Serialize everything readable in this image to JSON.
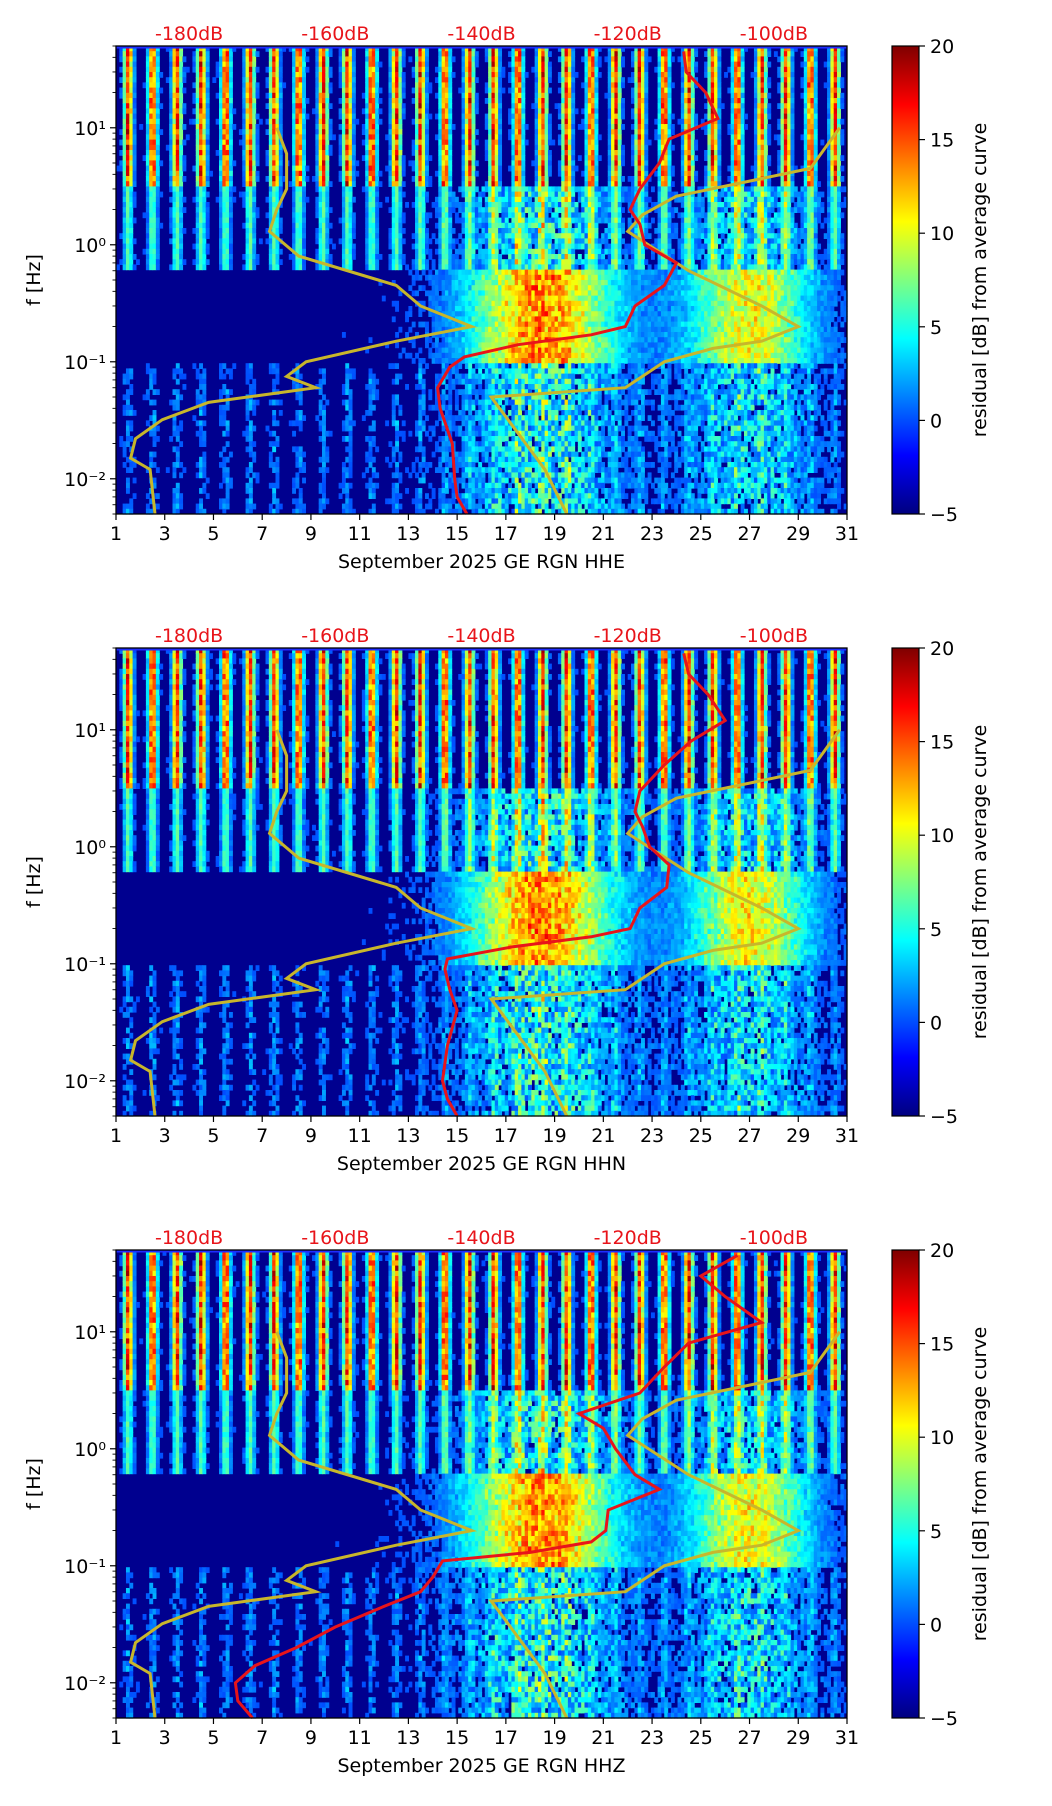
{
  "colors": {
    "noise_model_curve": "#c8b62b",
    "station_curve": "#e8141a",
    "db_scale_text": "#e8141a",
    "colormap": "jet"
  },
  "chart_data": [
    {
      "type": "heatmap",
      "channel": "HHE",
      "title": "",
      "xlabel": "September 2025 GE RGN  HHE",
      "ylabel": "f [Hz]",
      "colorbar_label": "residual [dB] from average curve",
      "colorbar_range": [
        -5,
        20
      ],
      "colorbar_ticks": [
        "20",
        "15",
        "10",
        "5",
        "0",
        "−5"
      ],
      "xlim": [
        1,
        31
      ],
      "x_ticks": [
        "1",
        "3",
        "5",
        "7",
        "9",
        "11",
        "13",
        "15",
        "17",
        "19",
        "21",
        "23",
        "25",
        "27",
        "29",
        "31"
      ],
      "ylim_hz": [
        0.005,
        50
      ],
      "y_scale": "log",
      "y_ticks": [
        "10¹",
        "10⁰",
        "10⁻¹",
        "10⁻²"
      ],
      "db_scale_labels": [
        "-180dB",
        "-160dB",
        "-140dB",
        "-120dB",
        "-100dB"
      ],
      "db_scale_values": [
        -180,
        -160,
        -140,
        -120,
        -100
      ],
      "noise_model_curve": [
        {
          "f": 0.005,
          "day": 2.6
        },
        {
          "f": 0.012,
          "day": 2.4
        },
        {
          "f": 0.015,
          "day": 1.6
        },
        {
          "f": 0.022,
          "day": 1.8
        },
        {
          "f": 0.032,
          "day": 2.9
        },
        {
          "f": 0.045,
          "day": 4.8
        },
        {
          "f": 0.06,
          "day": 9.2
        },
        {
          "f": 0.075,
          "day": 8.0
        },
        {
          "f": 0.1,
          "day": 8.8
        },
        {
          "f": 0.15,
          "day": 12.5
        },
        {
          "f": 0.2,
          "day": 15.6
        },
        {
          "f": 0.3,
          "day": 13.5
        },
        {
          "f": 0.45,
          "day": 12.5
        },
        {
          "f": 0.8,
          "day": 8.5
        },
        {
          "f": 1.3,
          "day": 7.3
        },
        {
          "f": 2.0,
          "day": 7.6
        },
        {
          "f": 3.0,
          "day": 8.0
        },
        {
          "f": 6.0,
          "day": 8.0
        },
        {
          "f": 10.0,
          "day": 7.6
        },
        {
          "gap": true
        },
        {
          "f": 0.005,
          "day": 19.5
        },
        {
          "f": 0.012,
          "day": 18.6
        },
        {
          "f": 0.05,
          "day": 16.4
        },
        {
          "f": 0.06,
          "day": 21.9
        },
        {
          "f": 0.1,
          "day": 23.5
        },
        {
          "f": 0.13,
          "day": 25.5
        },
        {
          "f": 0.15,
          "day": 27.5
        },
        {
          "f": 0.2,
          "day": 29.0
        },
        {
          "f": 0.3,
          "day": 27.5
        },
        {
          "f": 0.6,
          "day": 24.5
        },
        {
          "f": 1.3,
          "day": 22.0
        },
        {
          "f": 1.8,
          "day": 22.6
        },
        {
          "f": 2.6,
          "day": 24.0
        },
        {
          "f": 3.5,
          "day": 27.0
        },
        {
          "f": 4.5,
          "day": 29.5
        },
        {
          "f": 10.0,
          "day": 30.7
        }
      ],
      "station_curve": [
        {
          "f": 0.005,
          "day": 15.4
        },
        {
          "f": 0.007,
          "day": 15.0
        },
        {
          "f": 0.01,
          "day": 14.9
        },
        {
          "f": 0.02,
          "day": 14.8
        },
        {
          "f": 0.04,
          "day": 14.3
        },
        {
          "f": 0.06,
          "day": 14.2
        },
        {
          "f": 0.09,
          "day": 14.7
        },
        {
          "f": 0.11,
          "day": 15.3
        },
        {
          "f": 0.14,
          "day": 17.5
        },
        {
          "f": 0.17,
          "day": 20.5
        },
        {
          "f": 0.2,
          "day": 21.9
        },
        {
          "f": 0.3,
          "day": 22.3
        },
        {
          "f": 0.45,
          "day": 23.5
        },
        {
          "f": 0.7,
          "day": 24.0
        },
        {
          "f": 1.0,
          "day": 22.7
        },
        {
          "f": 1.5,
          "day": 22.5
        },
        {
          "f": 2.0,
          "day": 22.1
        },
        {
          "f": 3.0,
          "day": 22.5
        },
        {
          "f": 5.0,
          "day": 23.3
        },
        {
          "f": 8.0,
          "day": 23.7
        },
        {
          "f": 12.0,
          "day": 25.7
        },
        {
          "f": 20.0,
          "day": 25.2
        },
        {
          "f": 30.0,
          "day": 24.4
        },
        {
          "f": 45.0,
          "day": 24.3
        }
      ]
    },
    {
      "type": "heatmap",
      "channel": "HHN",
      "title": "",
      "xlabel": "September 2025 GE RGN  HHN",
      "ylabel": "f [Hz]",
      "colorbar_label": "residual [dB] from average curve",
      "colorbar_range": [
        -5,
        20
      ],
      "colorbar_ticks": [
        "20",
        "15",
        "10",
        "5",
        "0",
        "−5"
      ],
      "xlim": [
        1,
        31
      ],
      "x_ticks": [
        "1",
        "3",
        "5",
        "7",
        "9",
        "11",
        "13",
        "15",
        "17",
        "19",
        "21",
        "23",
        "25",
        "27",
        "29",
        "31"
      ],
      "ylim_hz": [
        0.005,
        50
      ],
      "y_scale": "log",
      "y_ticks": [
        "10¹",
        "10⁰",
        "10⁻¹",
        "10⁻²"
      ],
      "db_scale_labels": [
        "-180dB",
        "-160dB",
        "-140dB",
        "-120dB",
        "-100dB"
      ],
      "db_scale_values": [
        -180,
        -160,
        -140,
        -120,
        -100
      ],
      "noise_model_curve": [
        {
          "f": 0.005,
          "day": 2.6
        },
        {
          "f": 0.012,
          "day": 2.4
        },
        {
          "f": 0.015,
          "day": 1.6
        },
        {
          "f": 0.022,
          "day": 1.8
        },
        {
          "f": 0.032,
          "day": 2.9
        },
        {
          "f": 0.045,
          "day": 4.8
        },
        {
          "f": 0.06,
          "day": 9.2
        },
        {
          "f": 0.075,
          "day": 8.0
        },
        {
          "f": 0.1,
          "day": 8.8
        },
        {
          "f": 0.15,
          "day": 12.5
        },
        {
          "f": 0.2,
          "day": 15.6
        },
        {
          "f": 0.3,
          "day": 13.5
        },
        {
          "f": 0.45,
          "day": 12.5
        },
        {
          "f": 0.8,
          "day": 8.5
        },
        {
          "f": 1.3,
          "day": 7.3
        },
        {
          "f": 2.0,
          "day": 7.6
        },
        {
          "f": 3.0,
          "day": 8.0
        },
        {
          "f": 6.0,
          "day": 8.0
        },
        {
          "f": 10.0,
          "day": 7.6
        },
        {
          "gap": true
        },
        {
          "f": 0.005,
          "day": 19.5
        },
        {
          "f": 0.012,
          "day": 18.6
        },
        {
          "f": 0.05,
          "day": 16.4
        },
        {
          "f": 0.06,
          "day": 21.9
        },
        {
          "f": 0.1,
          "day": 23.5
        },
        {
          "f": 0.13,
          "day": 25.5
        },
        {
          "f": 0.15,
          "day": 27.5
        },
        {
          "f": 0.2,
          "day": 29.0
        },
        {
          "f": 0.3,
          "day": 27.5
        },
        {
          "f": 0.6,
          "day": 24.5
        },
        {
          "f": 1.3,
          "day": 22.0
        },
        {
          "f": 1.8,
          "day": 22.6
        },
        {
          "f": 2.6,
          "day": 24.0
        },
        {
          "f": 3.5,
          "day": 27.0
        },
        {
          "f": 4.5,
          "day": 29.5
        },
        {
          "f": 10.0,
          "day": 30.7
        }
      ],
      "station_curve": [
        {
          "f": 0.005,
          "day": 15.0
        },
        {
          "f": 0.007,
          "day": 14.6
        },
        {
          "f": 0.01,
          "day": 14.4
        },
        {
          "f": 0.02,
          "day": 14.6
        },
        {
          "f": 0.04,
          "day": 15.0
        },
        {
          "f": 0.06,
          "day": 14.7
        },
        {
          "f": 0.09,
          "day": 14.5
        },
        {
          "f": 0.11,
          "day": 14.6
        },
        {
          "f": 0.14,
          "day": 17.3
        },
        {
          "f": 0.17,
          "day": 20.5
        },
        {
          "f": 0.2,
          "day": 22.1
        },
        {
          "f": 0.3,
          "day": 22.5
        },
        {
          "f": 0.45,
          "day": 23.6
        },
        {
          "f": 0.7,
          "day": 23.7
        },
        {
          "f": 1.0,
          "day": 22.9
        },
        {
          "f": 1.5,
          "day": 22.6
        },
        {
          "f": 2.0,
          "day": 22.3
        },
        {
          "f": 3.0,
          "day": 22.5
        },
        {
          "f": 5.0,
          "day": 23.5
        },
        {
          "f": 8.0,
          "day": 24.6
        },
        {
          "f": 12.0,
          "day": 26.0
        },
        {
          "f": 20.0,
          "day": 25.3
        },
        {
          "f": 30.0,
          "day": 24.5
        },
        {
          "f": 45.0,
          "day": 24.3
        }
      ]
    },
    {
      "type": "heatmap",
      "channel": "HHZ",
      "title": "",
      "xlabel": "September 2025 GE RGN  HHZ",
      "ylabel": "f [Hz]",
      "colorbar_label": "residual [dB] from average curve",
      "colorbar_range": [
        -5,
        20
      ],
      "colorbar_ticks": [
        "20",
        "15",
        "10",
        "5",
        "0",
        "−5"
      ],
      "xlim": [
        1,
        31
      ],
      "x_ticks": [
        "1",
        "3",
        "5",
        "7",
        "9",
        "11",
        "13",
        "15",
        "17",
        "19",
        "21",
        "23",
        "25",
        "27",
        "29",
        "31"
      ],
      "ylim_hz": [
        0.005,
        50
      ],
      "y_scale": "log",
      "y_ticks": [
        "10¹",
        "10⁰",
        "10⁻¹",
        "10⁻²"
      ],
      "db_scale_labels": [
        "-180dB",
        "-160dB",
        "-140dB",
        "-120dB",
        "-100dB"
      ],
      "db_scale_values": [
        -180,
        -160,
        -140,
        -120,
        -100
      ],
      "noise_model_curve": [
        {
          "f": 0.005,
          "day": 2.6
        },
        {
          "f": 0.012,
          "day": 2.4
        },
        {
          "f": 0.015,
          "day": 1.6
        },
        {
          "f": 0.022,
          "day": 1.8
        },
        {
          "f": 0.032,
          "day": 2.9
        },
        {
          "f": 0.045,
          "day": 4.8
        },
        {
          "f": 0.06,
          "day": 9.2
        },
        {
          "f": 0.075,
          "day": 8.0
        },
        {
          "f": 0.1,
          "day": 8.8
        },
        {
          "f": 0.15,
          "day": 12.5
        },
        {
          "f": 0.2,
          "day": 15.6
        },
        {
          "f": 0.3,
          "day": 13.5
        },
        {
          "f": 0.45,
          "day": 12.5
        },
        {
          "f": 0.8,
          "day": 8.5
        },
        {
          "f": 1.3,
          "day": 7.3
        },
        {
          "f": 2.0,
          "day": 7.6
        },
        {
          "f": 3.0,
          "day": 8.0
        },
        {
          "f": 6.0,
          "day": 8.0
        },
        {
          "f": 10.0,
          "day": 7.6
        },
        {
          "gap": true
        },
        {
          "f": 0.005,
          "day": 19.5
        },
        {
          "f": 0.012,
          "day": 18.6
        },
        {
          "f": 0.05,
          "day": 16.4
        },
        {
          "f": 0.06,
          "day": 21.9
        },
        {
          "f": 0.1,
          "day": 23.5
        },
        {
          "f": 0.13,
          "day": 25.5
        },
        {
          "f": 0.15,
          "day": 27.5
        },
        {
          "f": 0.2,
          "day": 29.0
        },
        {
          "f": 0.3,
          "day": 27.5
        },
        {
          "f": 0.6,
          "day": 24.5
        },
        {
          "f": 1.3,
          "day": 22.0
        },
        {
          "f": 1.8,
          "day": 22.6
        },
        {
          "f": 2.6,
          "day": 24.0
        },
        {
          "f": 3.5,
          "day": 27.0
        },
        {
          "f": 4.5,
          "day": 29.5
        },
        {
          "f": 10.0,
          "day": 30.7
        }
      ],
      "station_curve": [
        {
          "f": 0.005,
          "day": 6.6
        },
        {
          "f": 0.007,
          "day": 6.0
        },
        {
          "f": 0.01,
          "day": 5.9
        },
        {
          "f": 0.014,
          "day": 6.7
        },
        {
          "f": 0.02,
          "day": 8.4
        },
        {
          "f": 0.03,
          "day": 10.0
        },
        {
          "f": 0.045,
          "day": 12.0
        },
        {
          "f": 0.06,
          "day": 13.5
        },
        {
          "f": 0.08,
          "day": 14.0
        },
        {
          "f": 0.11,
          "day": 14.4
        },
        {
          "f": 0.13,
          "day": 18.0
        },
        {
          "f": 0.16,
          "day": 20.5
        },
        {
          "f": 0.2,
          "day": 21.1
        },
        {
          "f": 0.3,
          "day": 21.2
        },
        {
          "f": 0.45,
          "day": 23.3
        },
        {
          "f": 0.6,
          "day": 22.3
        },
        {
          "f": 1.0,
          "day": 21.5
        },
        {
          "f": 1.5,
          "day": 21.0
        },
        {
          "f": 2.0,
          "day": 20.0
        },
        {
          "f": 3.0,
          "day": 22.5
        },
        {
          "f": 5.0,
          "day": 23.5
        },
        {
          "f": 8.0,
          "day": 24.5
        },
        {
          "f": 12.0,
          "day": 27.5
        },
        {
          "f": 20.0,
          "day": 26.0
        },
        {
          "f": 30.0,
          "day": 25.0
        },
        {
          "f": 45.0,
          "day": 26.5
        }
      ]
    }
  ]
}
